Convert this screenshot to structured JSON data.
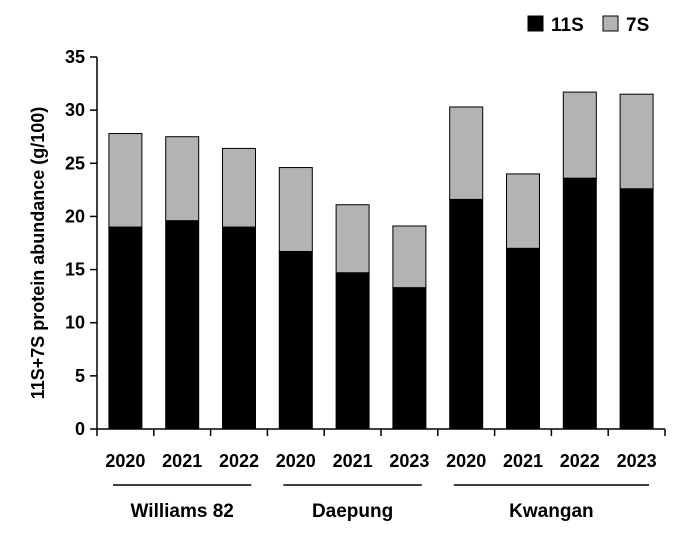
{
  "chart_data": {
    "type": "bar",
    "stacked": true,
    "ylabel": "11S+7S protein abundance (g/100)",
    "xlabel": "",
    "ylim": [
      0,
      35
    ],
    "yticks": [
      0,
      5,
      10,
      15,
      20,
      25,
      30,
      35
    ],
    "grid": false,
    "legend_position": "top-right",
    "groups": [
      {
        "name": "Williams 82",
        "categories": [
          "2020",
          "2021",
          "2022"
        ]
      },
      {
        "name": "Daepung",
        "categories": [
          "2020",
          "2021",
          "2023"
        ]
      },
      {
        "name": "Kwangan",
        "categories": [
          "2020",
          "2021",
          "2022",
          "2023"
        ]
      }
    ],
    "categories": [
      "2020",
      "2021",
      "2022",
      "2020",
      "2021",
      "2023",
      "2020",
      "2021",
      "2022",
      "2023"
    ],
    "series": [
      {
        "name": "11S",
        "color": "#000000",
        "values": [
          19.0,
          19.6,
          19.0,
          16.7,
          14.7,
          13.3,
          21.6,
          17.0,
          23.6,
          22.6
        ]
      },
      {
        "name": "7S",
        "color": "#b3b3b3",
        "values": [
          8.8,
          7.9,
          7.4,
          7.9,
          6.4,
          5.8,
          8.7,
          7.0,
          8.1,
          8.9
        ]
      }
    ]
  }
}
